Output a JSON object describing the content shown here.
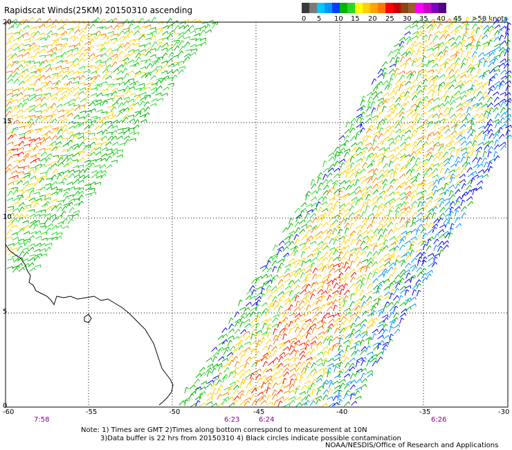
{
  "title": "Rapidscat Winds(25KM) 20150310 ascending",
  "colorbar": {
    "labels": [
      "0",
      "5",
      "10",
      "15",
      "20",
      "25",
      "30",
      "35",
      "40",
      "45",
      ">50 knots"
    ],
    "colors": [
      "#3a3a3a",
      "#7a7a7a",
      "#00c8ff",
      "#0096ff",
      "#0040ff",
      "#00b400",
      "#28d728",
      "#ffff00",
      "#ffd200",
      "#ffa500",
      "#ff7800",
      "#ff0000",
      "#c80000",
      "#8b4513",
      "#a05a2d",
      "#ff00ff",
      "#c800c8",
      "#8000c0",
      "#500080"
    ]
  },
  "axes": {
    "lon_labels": [
      "-60",
      "-55",
      "-50",
      "-45",
      "-40",
      "-35",
      "-30"
    ],
    "lat_labels": [
      "0",
      "5",
      "10",
      "15",
      "20"
    ],
    "lon_range": [
      -60,
      -30
    ],
    "lat_range": [
      0,
      20
    ]
  },
  "times": [
    "7:58",
    "6:23",
    "6:24",
    "6:26"
  ],
  "notes": [
    "Note: 1) Times are GMT 2)Times along bottom correspond to measurement at 10N",
    "3)Data buffer is 22 hrs from 20150310 4) Black circles indicate possible contamination"
  ],
  "credit": "NOAA/NESDIS/Office of Research and Applications",
  "swath_colors": {
    "blue": "#0000ff",
    "cyan": "#0096ff",
    "green": "#00b400",
    "lightgreen": "#28d728",
    "yellow": "#ffd200",
    "orange": "#ff7800",
    "red": "#ff0000"
  }
}
